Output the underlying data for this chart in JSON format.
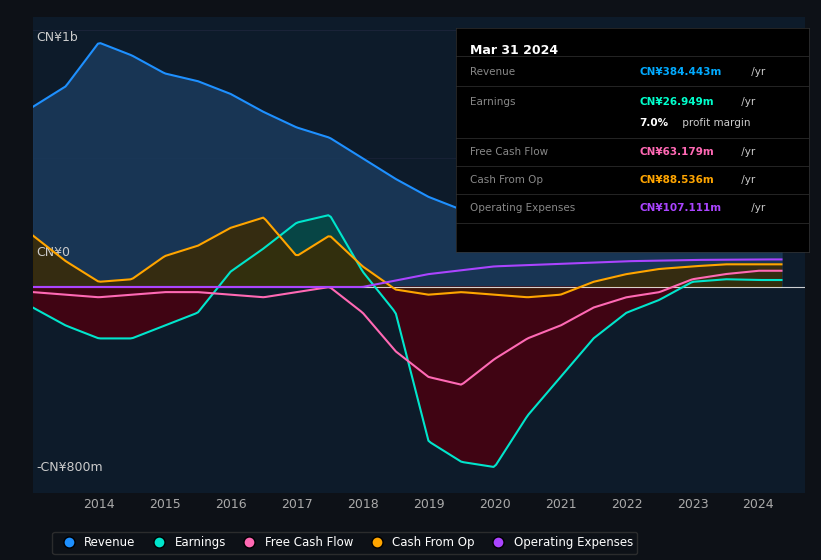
{
  "bg_color": "#0d1117",
  "plot_bg_color": "#0d1b2a",
  "ylabel": "CN¥1b",
  "y_zero_label": "CN¥0",
  "y_bottom_label": "-CN¥800m",
  "ylim": [
    -800,
    1050
  ],
  "xlim": [
    2013.0,
    2024.7
  ],
  "xticks": [
    2014,
    2015,
    2016,
    2017,
    2018,
    2019,
    2020,
    2021,
    2022,
    2023,
    2024
  ],
  "series": {
    "revenue": {
      "color": "#1e90ff",
      "fill_color": "#1a3a5c",
      "alpha": 0.85
    },
    "earnings": {
      "color": "#00e5cc",
      "fill_color": "#00e5cc",
      "alpha": 0.3
    },
    "free_cash_flow": {
      "color": "#ff69b4",
      "fill_color": "#7a0030",
      "alpha": 0.7
    },
    "cash_from_op": {
      "color": "#ffa500",
      "fill_color": "#5a3a00",
      "alpha": 0.6
    },
    "operating_expenses": {
      "color": "#aa44ff",
      "fill_color": "#aa44ff",
      "alpha": 0.3
    }
  },
  "legend": [
    {
      "label": "Revenue",
      "color": "#1e90ff"
    },
    {
      "label": "Earnings",
      "color": "#00e5cc"
    },
    {
      "label": "Free Cash Flow",
      "color": "#ff69b4"
    },
    {
      "label": "Cash From Op",
      "color": "#ffa500"
    },
    {
      "label": "Operating Expenses",
      "color": "#aa44ff"
    }
  ]
}
